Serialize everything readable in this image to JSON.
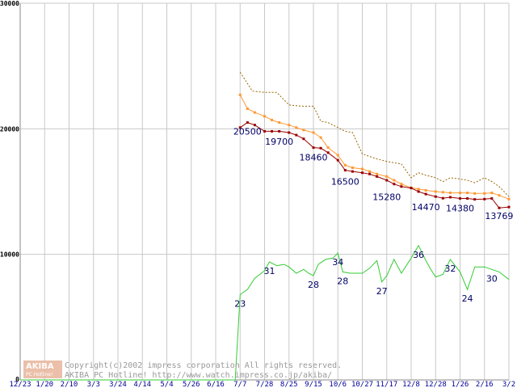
{
  "chart_data": {
    "type": "line",
    "x_categories": [
      "12/23",
      "1/20",
      "2/10",
      "3/3",
      "3/24",
      "4/14",
      "5/4",
      "5/26",
      "6/16",
      "7/7",
      "7/28",
      "8/25",
      "9/15",
      "10/6",
      "10/27",
      "11/17",
      "12/8",
      "12/28",
      "1/26",
      "2/16",
      "3/2"
    ],
    "y_ticks": [
      0,
      10000,
      20000,
      30000
    ],
    "ylim": [
      0,
      30000
    ],
    "grid": true,
    "series": [
      {
        "name": "",
        "color": "#996600",
        "style": "dotted",
        "points": [
          [
            9.0,
            24500
          ],
          [
            9.5,
            23000
          ],
          [
            10.0,
            22900
          ],
          [
            10.5,
            22900
          ],
          [
            11.0,
            21900
          ],
          [
            11.5,
            21800
          ],
          [
            12.0,
            21800
          ],
          [
            12.3,
            20600
          ],
          [
            12.6,
            20500
          ],
          [
            13.0,
            20100
          ],
          [
            13.3,
            19800
          ],
          [
            13.6,
            19700
          ],
          [
            14.0,
            18000
          ],
          [
            14.3,
            17800
          ],
          [
            14.6,
            17600
          ],
          [
            15.0,
            17400
          ],
          [
            15.3,
            17300
          ],
          [
            15.6,
            17200
          ],
          [
            16.0,
            16100
          ],
          [
            16.3,
            16500
          ],
          [
            16.6,
            16300
          ],
          [
            17.0,
            16100
          ],
          [
            17.3,
            15800
          ],
          [
            17.6,
            16100
          ],
          [
            18.0,
            16000
          ],
          [
            18.3,
            15900
          ],
          [
            18.6,
            15700
          ],
          [
            19.0,
            16100
          ],
          [
            19.3,
            15800
          ],
          [
            19.6,
            15400
          ],
          [
            20.0,
            14600
          ]
        ]
      },
      {
        "name": "",
        "color": "#ff9933",
        "style": "solid-markers",
        "points": [
          [
            9.0,
            22700
          ],
          [
            9.3,
            21600
          ],
          [
            9.6,
            21300
          ],
          [
            10.0,
            21000
          ],
          [
            10.3,
            20700
          ],
          [
            10.6,
            20500
          ],
          [
            11.0,
            20300
          ],
          [
            11.3,
            20100
          ],
          [
            11.6,
            19900
          ],
          [
            12.0,
            19700
          ],
          [
            12.3,
            19300
          ],
          [
            12.6,
            18500
          ],
          [
            13.0,
            17900
          ],
          [
            13.3,
            17100
          ],
          [
            13.6,
            16900
          ],
          [
            14.0,
            16800
          ],
          [
            14.3,
            16600
          ],
          [
            14.6,
            16400
          ],
          [
            15.0,
            16200
          ],
          [
            15.3,
            15900
          ],
          [
            15.6,
            15600
          ],
          [
            16.0,
            15300
          ],
          [
            16.3,
            15200
          ],
          [
            16.6,
            15100
          ],
          [
            17.0,
            15000
          ],
          [
            17.3,
            14950
          ],
          [
            17.6,
            14900
          ],
          [
            18.0,
            14900
          ],
          [
            18.3,
            14900
          ],
          [
            18.6,
            14850
          ],
          [
            19.0,
            14850
          ],
          [
            19.3,
            14900
          ],
          [
            19.6,
            14700
          ],
          [
            20.0,
            14400
          ]
        ]
      },
      {
        "name": "",
        "color": "#990000",
        "style": "solid-markers",
        "points": [
          [
            9.0,
            20100
          ],
          [
            9.3,
            20500
          ],
          [
            9.6,
            20300
          ],
          [
            10.0,
            19800
          ],
          [
            10.3,
            19800
          ],
          [
            10.6,
            19800
          ],
          [
            11.0,
            19700
          ],
          [
            11.3,
            19500
          ],
          [
            11.6,
            19200
          ],
          [
            12.0,
            18500
          ],
          [
            12.3,
            18460
          ],
          [
            12.6,
            18100
          ],
          [
            13.0,
            17500
          ],
          [
            13.3,
            16700
          ],
          [
            13.6,
            16600
          ],
          [
            14.0,
            16500
          ],
          [
            14.3,
            16400
          ],
          [
            14.6,
            16200
          ],
          [
            15.0,
            15900
          ],
          [
            15.3,
            15600
          ],
          [
            15.6,
            15400
          ],
          [
            16.0,
            15280
          ],
          [
            16.3,
            15000
          ],
          [
            16.6,
            14800
          ],
          [
            17.0,
            14600
          ],
          [
            17.3,
            14470
          ],
          [
            17.6,
            14550
          ],
          [
            18.0,
            14450
          ],
          [
            18.3,
            14450
          ],
          [
            18.6,
            14380
          ],
          [
            19.0,
            14400
          ],
          [
            19.3,
            14450
          ],
          [
            19.6,
            13700
          ],
          [
            20.0,
            13769
          ]
        ]
      },
      {
        "name": "",
        "color": "#33cc33",
        "style": "solid",
        "points": [
          [
            0,
            0
          ],
          [
            8.8,
            0
          ],
          [
            9.0,
            6800
          ],
          [
            9.3,
            7200
          ],
          [
            9.6,
            8100
          ],
          [
            10.0,
            8700
          ],
          [
            10.2,
            9400
          ],
          [
            10.5,
            9100
          ],
          [
            10.8,
            9200
          ],
          [
            11.0,
            9000
          ],
          [
            11.3,
            8500
          ],
          [
            11.6,
            8800
          ],
          [
            11.8,
            8500
          ],
          [
            12.0,
            8300
          ],
          [
            12.2,
            9200
          ],
          [
            12.5,
            9600
          ],
          [
            12.8,
            9700
          ],
          [
            13.0,
            10100
          ],
          [
            13.2,
            8600
          ],
          [
            13.5,
            8500
          ],
          [
            13.8,
            8500
          ],
          [
            14.0,
            8500
          ],
          [
            14.3,
            8900
          ],
          [
            14.6,
            9500
          ],
          [
            14.8,
            7800
          ],
          [
            15.0,
            8300
          ],
          [
            15.3,
            9600
          ],
          [
            15.6,
            8500
          ],
          [
            16.0,
            9700
          ],
          [
            16.3,
            10700
          ],
          [
            16.6,
            9500
          ],
          [
            16.8,
            8800
          ],
          [
            17.0,
            8200
          ],
          [
            17.3,
            8400
          ],
          [
            17.6,
            9600
          ],
          [
            18.0,
            8600
          ],
          [
            18.3,
            7200
          ],
          [
            18.6,
            9000
          ],
          [
            19.0,
            9000
          ],
          [
            19.3,
            8800
          ],
          [
            19.6,
            8600
          ],
          [
            20.0,
            8000
          ]
        ]
      }
    ],
    "data_labels": [
      {
        "text": "20500",
        "x": 9.3,
        "y": 20500
      },
      {
        "text": "19700",
        "x": 10.6,
        "y": 19700
      },
      {
        "text": "18460",
        "x": 12.0,
        "y": 18460
      },
      {
        "text": "16500",
        "x": 13.3,
        "y": 16500
      },
      {
        "text": "15280",
        "x": 15.0,
        "y": 15280
      },
      {
        "text": "14470",
        "x": 16.6,
        "y": 14470
      },
      {
        "text": "14380",
        "x": 18.0,
        "y": 14380
      },
      {
        "text": "13769",
        "x": 19.6,
        "y": 13769
      },
      {
        "text": "23",
        "x": 9.0,
        "y": 6800
      },
      {
        "text": "31",
        "x": 10.2,
        "y": 9400
      },
      {
        "text": "28",
        "x": 12.0,
        "y": 8300
      },
      {
        "text": "34",
        "x": 13.0,
        "y": 10100
      },
      {
        "text": "28",
        "x": 13.2,
        "y": 8600
      },
      {
        "text": "27",
        "x": 14.8,
        "y": 7800
      },
      {
        "text": "36",
        "x": 16.3,
        "y": 10700
      },
      {
        "text": "32",
        "x": 17.6,
        "y": 9600
      },
      {
        "text": "24",
        "x": 18.3,
        "y": 7200
      },
      {
        "text": "30",
        "x": 19.3,
        "y": 8800
      }
    ]
  },
  "watermark": {
    "line1": "Copyright(c)2002 impress corporation All rights reserved.",
    "line2": "AKIBA PC Hotline! http://www.watch.impress.co.jp/akiba/",
    "logo_text": "AKIBA",
    "logo_sub": "PC Hotline!"
  }
}
